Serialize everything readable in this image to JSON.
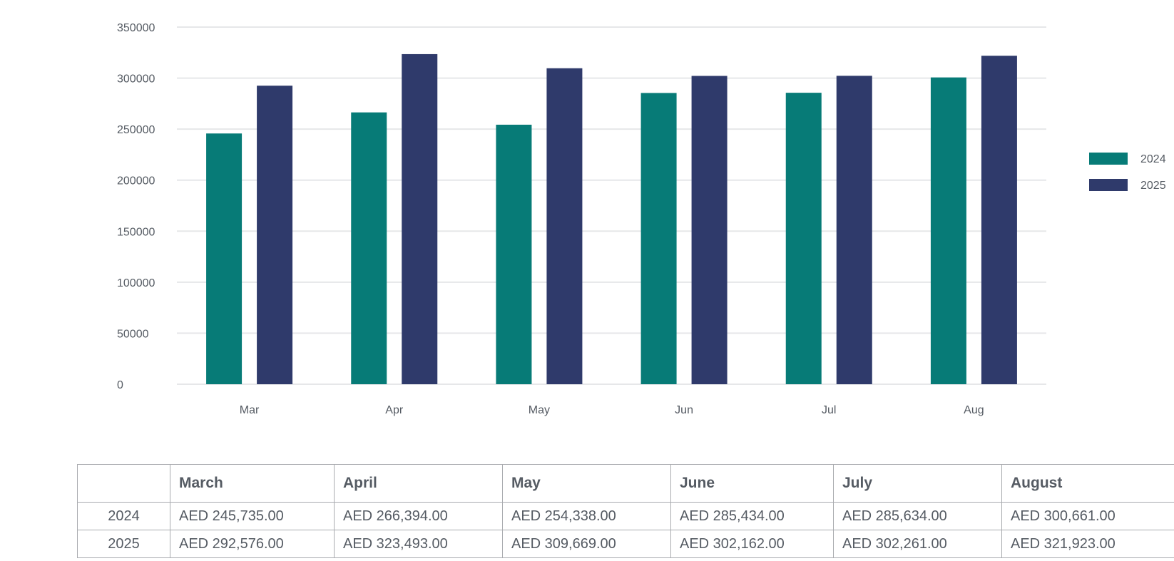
{
  "chart_data": {
    "type": "bar",
    "categories": [
      "Mar",
      "Apr",
      "May",
      "Jun",
      "Jul",
      "Aug"
    ],
    "series": [
      {
        "name": "2024",
        "values": [
          245735,
          266394,
          254338,
          285434,
          285634,
          300661
        ],
        "color": "#077b77"
      },
      {
        "name": "2025",
        "values": [
          292576,
          323493,
          309669,
          302162,
          302261,
          321923
        ],
        "color": "#2f3a6b"
      }
    ],
    "ylim": [
      0,
      350000
    ],
    "yticks": [
      "0",
      "50000",
      "100000",
      "150000",
      "200000",
      "250000",
      "300000",
      "350000"
    ],
    "grid": true,
    "grid_color": "#e6e7e9",
    "legend_position": "right",
    "title": "",
    "xlabel": "",
    "ylabel": ""
  },
  "table": {
    "headers": [
      "",
      "March",
      "April",
      "May",
      "June",
      "July",
      "August"
    ],
    "rows": [
      {
        "label": "2024",
        "cells": [
          "AED 245,735.00",
          "AED 266,394.00",
          "AED 254,338.00",
          "AED 285,434.00",
          "AED 285,634.00",
          "AED 300,661.00"
        ]
      },
      {
        "label": "2025",
        "cells": [
          "AED 292,576.00",
          "AED 323,493.00",
          "AED 309,669.00",
          "AED 302,162.00",
          "AED 302,261.00",
          "AED 321,923.00"
        ]
      }
    ]
  }
}
